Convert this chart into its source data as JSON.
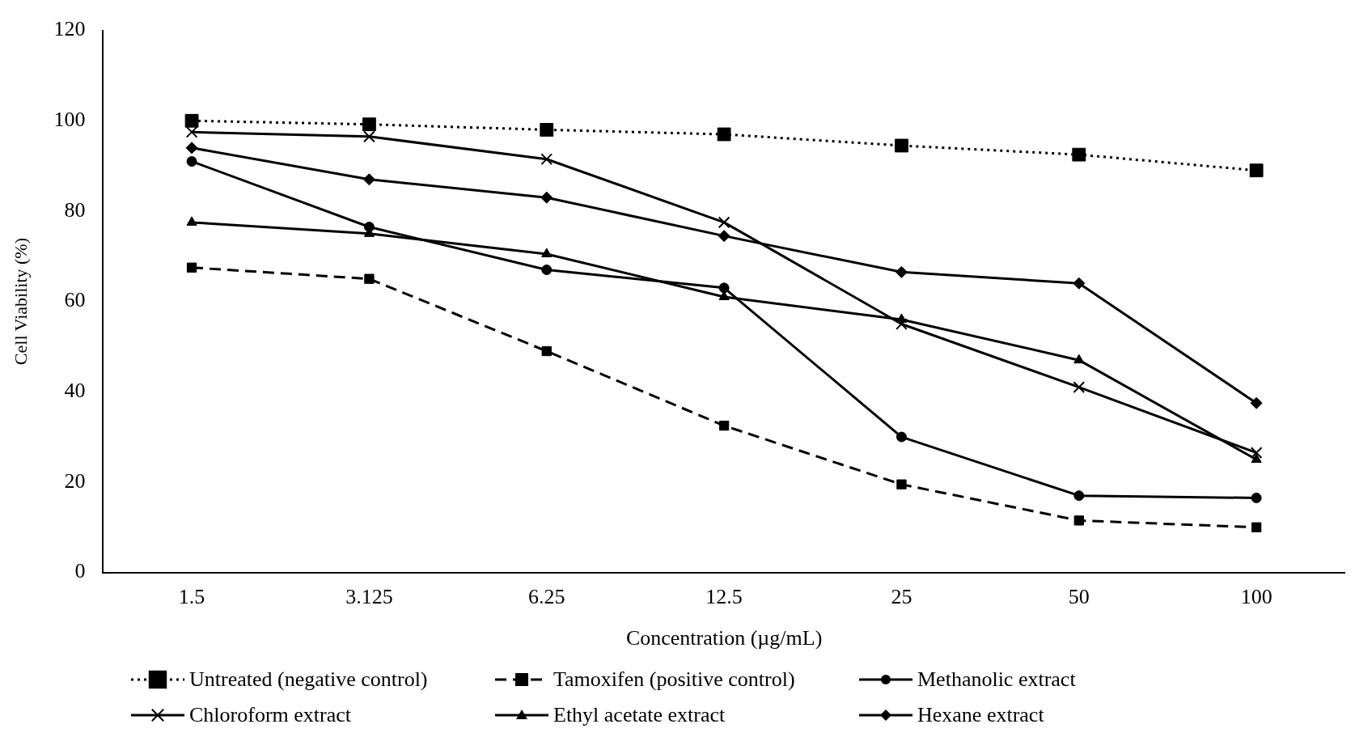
{
  "chart_data": {
    "type": "line",
    "xlabel": "Concentration (µg/mL)",
    "ylabel": "Cell Viability (%)",
    "categories": [
      "1.5",
      "3.125",
      "6.25",
      "12.5",
      "25",
      "50",
      "100"
    ],
    "ylim": [
      0,
      120
    ],
    "yticks": [
      0,
      20,
      40,
      60,
      80,
      100,
      120
    ],
    "grid": false,
    "legend": "bottom",
    "series": [
      {
        "name": "Untreated (negative control)",
        "color": "#000000",
        "marker": "square",
        "line_style": "dotted",
        "values": [
          100,
          99.2,
          98,
          97,
          94.5,
          92.5,
          89
        ]
      },
      {
        "name": "Tamoxifen (positive control)",
        "color": "#000000",
        "marker": "square",
        "line_style": "dashed",
        "values": [
          67.5,
          65,
          49,
          32.5,
          19.5,
          11.5,
          10
        ]
      },
      {
        "name": "Methanolic extract",
        "color": "#000000",
        "marker": "circle",
        "line_style": "solid",
        "values": [
          91,
          76.5,
          67,
          63,
          30,
          17,
          16.5
        ]
      },
      {
        "name": "Chloroform extract",
        "color": "#000000",
        "marker": "cross",
        "line_style": "solid",
        "values": [
          97.5,
          96.5,
          91.5,
          77.5,
          55,
          41,
          26.5
        ]
      },
      {
        "name": "Ethyl acetate extract",
        "color": "#000000",
        "marker": "triangle",
        "line_style": "solid",
        "values": [
          77.5,
          75,
          70.5,
          61,
          56,
          47,
          25
        ]
      },
      {
        "name": "Hexane extract",
        "color": "#000000",
        "marker": "diamond",
        "line_style": "solid",
        "values": [
          94,
          87,
          83,
          74.5,
          66.5,
          64,
          37.5
        ]
      }
    ]
  }
}
